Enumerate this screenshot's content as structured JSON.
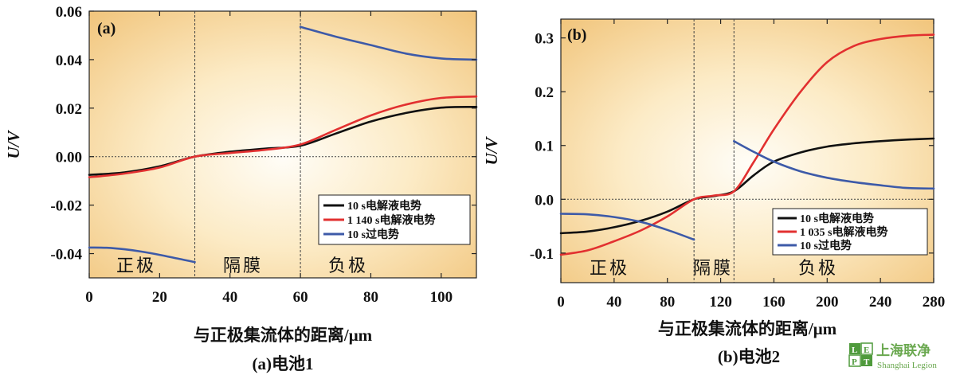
{
  "chart_data": [
    {
      "panel": "(a)",
      "caption": "(a)电池1",
      "type": "line",
      "xlabel": "与正极集流体的距离/μm",
      "ylabel": "U/V",
      "xlim": [
        0,
        110
      ],
      "ylim": [
        -0.05,
        0.06
      ],
      "xticks": [
        0,
        20,
        40,
        60,
        80,
        100
      ],
      "xtick_labels": [
        "0",
        "20",
        "40",
        "60",
        "80",
        "100"
      ],
      "yticks": [
        -0.04,
        -0.02,
        0.0,
        0.02,
        0.04,
        0.06
      ],
      "ytick_labels": [
        "-0.04",
        "-0.02",
        "0.00",
        "0.02",
        "0.04",
        "0.06"
      ],
      "separators": [
        30,
        60
      ],
      "regions": [
        "正极",
        "隔膜",
        "负极"
      ],
      "legend_position": "lower-right",
      "series": [
        {
          "name": "10 s电解液电势",
          "color": "#111111",
          "x": [
            0,
            10,
            20,
            30,
            40,
            50,
            60,
            70,
            80,
            90,
            100,
            110
          ],
          "y": [
            -0.0075,
            -0.0065,
            -0.004,
            0.0,
            0.002,
            0.0033,
            0.0045,
            0.0095,
            0.0145,
            0.018,
            0.0202,
            0.0205
          ]
        },
        {
          "name": "1 140 s电解液电势",
          "color": "#e23030",
          "x": [
            0,
            10,
            20,
            30,
            40,
            50,
            60,
            70,
            80,
            90,
            100,
            110
          ],
          "y": [
            -0.0085,
            -0.007,
            -0.0045,
            0.0,
            0.0015,
            0.0028,
            0.005,
            0.011,
            0.017,
            0.0215,
            0.0242,
            0.0248
          ]
        },
        {
          "name": "10 s过电势",
          "color": "#3d5aa8",
          "segments": [
            {
              "x": [
                0,
                5,
                10,
                15,
                20,
                25,
                30
              ],
              "y": [
                -0.0375,
                -0.0376,
                -0.0382,
                -0.0392,
                -0.0405,
                -0.042,
                -0.0435
              ]
            },
            {
              "x": [
                60,
                70,
                80,
                90,
                100,
                110
              ],
              "y": [
                0.0535,
                0.0495,
                0.046,
                0.0425,
                0.0405,
                0.04
              ]
            }
          ]
        }
      ]
    },
    {
      "panel": "(b)",
      "caption": "(b)电池2",
      "type": "line",
      "xlabel": "与正极集流体的距离/μm",
      "ylabel": "U/V",
      "xlim": [
        0,
        280
      ],
      "ylim": [
        -0.155,
        0.335
      ],
      "xticks": [
        0,
        40,
        80,
        120,
        160,
        200,
        240,
        280
      ],
      "xtick_labels": [
        "0",
        "40",
        "80",
        "120",
        "160",
        "200",
        "240",
        "280"
      ],
      "yticks": [
        -0.1,
        0.0,
        0.1,
        0.2,
        0.3
      ],
      "ytick_labels": [
        "-0.1",
        "0.0",
        "0.1",
        "0.2",
        "0.3"
      ],
      "separators": [
        100,
        130
      ],
      "regions": [
        "正极",
        "隔膜",
        "负极"
      ],
      "legend_position": "lower-right",
      "series": [
        {
          "name": "10 s电解液电势",
          "color": "#111111",
          "x": [
            0,
            20,
            40,
            60,
            80,
            100,
            115,
            130,
            145,
            160,
            180,
            200,
            220,
            240,
            260,
            280
          ],
          "y": [
            -0.063,
            -0.06,
            -0.052,
            -0.04,
            -0.023,
            0.0,
            0.006,
            0.015,
            0.045,
            0.07,
            0.087,
            0.098,
            0.104,
            0.108,
            0.111,
            0.113
          ]
        },
        {
          "name": "1 035 s电解液电势",
          "color": "#e23030",
          "x": [
            0,
            20,
            40,
            60,
            80,
            100,
            115,
            130,
            145,
            160,
            180,
            200,
            220,
            240,
            260,
            280
          ],
          "y": [
            -0.103,
            -0.095,
            -0.078,
            -0.058,
            -0.032,
            0.0,
            0.007,
            0.015,
            0.07,
            0.13,
            0.2,
            0.255,
            0.285,
            0.298,
            0.304,
            0.306
          ]
        },
        {
          "name": "10 s过电势",
          "color": "#3d5aa8",
          "segments": [
            {
              "x": [
                0,
                20,
                40,
                60,
                80,
                100
              ],
              "y": [
                -0.027,
                -0.028,
                -0.033,
                -0.042,
                -0.057,
                -0.075
              ]
            },
            {
              "x": [
                130,
                145,
                160,
                180,
                200,
                220,
                240,
                260,
                280
              ],
              "y": [
                0.108,
                0.088,
                0.07,
                0.052,
                0.04,
                0.032,
                0.026,
                0.021,
                0.02
              ]
            }
          ]
        }
      ]
    }
  ],
  "watermark": {
    "mark": "LEPT",
    "cn": "上海联净",
    "en": "Shanghai Legion"
  }
}
